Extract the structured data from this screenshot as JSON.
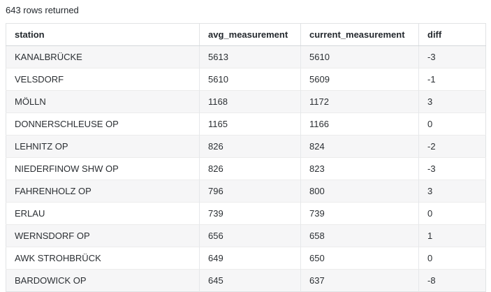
{
  "status": {
    "rows_returned_label": "643 rows returned",
    "rows_returned_count": 643
  },
  "table": {
    "columns": {
      "station": "station",
      "avg": "avg_measurement",
      "current": "current_measurement",
      "diff": "diff"
    },
    "rows": [
      {
        "station": "KANALBRÜCKE",
        "avg": "5613",
        "current": "5610",
        "diff": "-3"
      },
      {
        "station": "VELSDORF",
        "avg": "5610",
        "current": "5609",
        "diff": "-1"
      },
      {
        "station": "MÖLLN",
        "avg": "1168",
        "current": "1172",
        "diff": "3"
      },
      {
        "station": "DONNERSCHLEUSE OP",
        "avg": "1165",
        "current": "1166",
        "diff": "0"
      },
      {
        "station": "LEHNITZ OP",
        "avg": "826",
        "current": "824",
        "diff": "-2"
      },
      {
        "station": "NIEDERFINOW SHW OP",
        "avg": "826",
        "current": "823",
        "diff": "-3"
      },
      {
        "station": "FAHRENHOLZ OP",
        "avg": "796",
        "current": "800",
        "diff": "3"
      },
      {
        "station": "ERLAU",
        "avg": "739",
        "current": "739",
        "diff": "0"
      },
      {
        "station": "WERNSDORF OP",
        "avg": "656",
        "current": "658",
        "diff": "1"
      },
      {
        "station": "AWK STROHBRÜCK",
        "avg": "649",
        "current": "650",
        "diff": "0"
      },
      {
        "station": "BARDOWICK OP",
        "avg": "645",
        "current": "637",
        "diff": "-8"
      }
    ]
  },
  "colors": {
    "zebra_row": "#f6f6f7",
    "table_border": "#e1e3e5",
    "header_border": "#d4d7da",
    "text": "#24292e"
  }
}
